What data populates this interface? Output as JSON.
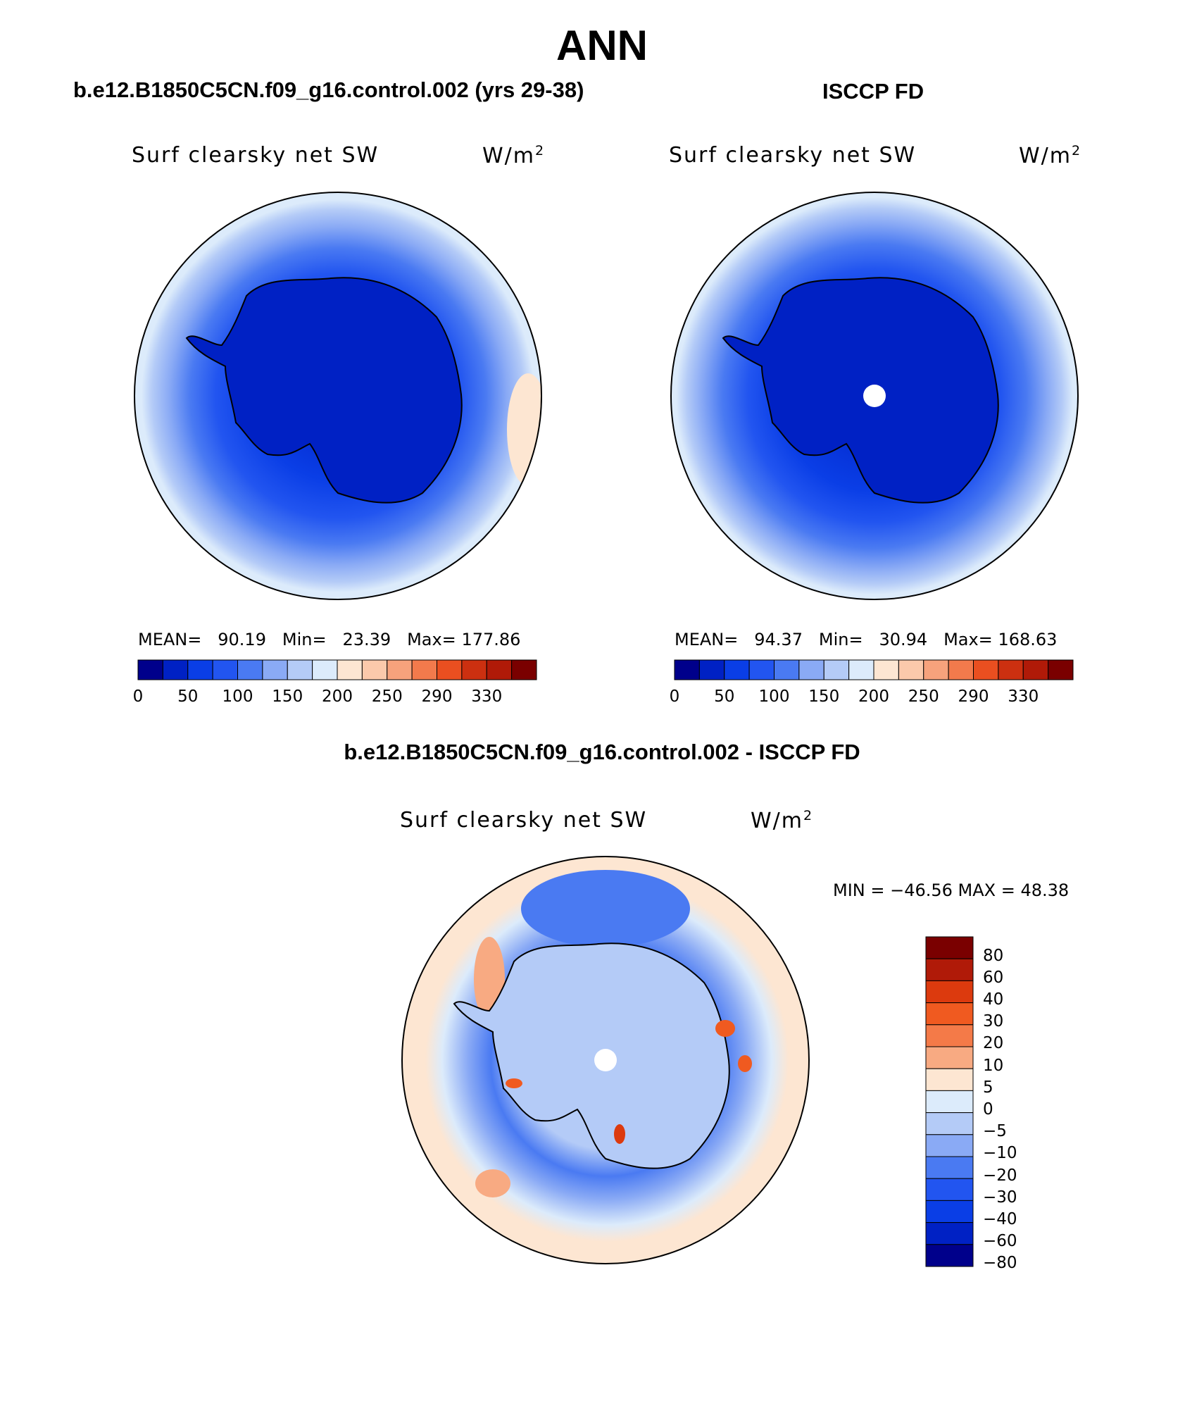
{
  "title": "ANN",
  "panels": [
    {
      "title": "b.e12.B1850C5CN.f09_g16.control.002 (yrs 29-38)",
      "variable": "Surf clearsky net SW",
      "units": "W/m",
      "units_sup": "2",
      "stats": {
        "mean_label": "MEAN=",
        "mean": "90.19",
        "min_label": "Min=",
        "min": "23.39",
        "max_label": "Max=",
        "max": "177.86"
      },
      "colorbar_ticks": [
        "0",
        "50",
        "100",
        "150",
        "200",
        "250",
        "290",
        "330"
      ]
    },
    {
      "title": "ISCCP FD",
      "variable": "Surf clearsky net SW",
      "units": "W/m",
      "units_sup": "2",
      "stats": {
        "mean_label": "MEAN=",
        "mean": "94.37",
        "min_label": "Min=",
        "min": "30.94",
        "max_label": "Max=",
        "max": "168.63"
      },
      "colorbar_ticks": [
        "0",
        "50",
        "100",
        "150",
        "200",
        "250",
        "290",
        "330"
      ]
    }
  ],
  "difference": {
    "title": "b.e12.B1850C5CN.f09_g16.control.002 - ISCCP FD",
    "variable": "Surf clearsky net SW",
    "units": "W/m",
    "units_sup": "2",
    "minmax": "MIN = −46.56 MAX =   48.38",
    "colorbar_ticks": [
      "80",
      "60",
      "40",
      "30",
      "20",
      "10",
      "5",
      "0",
      "−5",
      "−10",
      "−20",
      "−30",
      "−40",
      "−60",
      "−80"
    ]
  },
  "colors": {
    "abs_scale": [
      "#00008b",
      "#0021c4",
      "#0a3ee6",
      "#2255f0",
      "#4a7af2",
      "#8aaaf5",
      "#b4cbf7",
      "#dcebfb",
      "#fde6d2",
      "#fbc9ab",
      "#f7a27c",
      "#f27a4c",
      "#ea4f20",
      "#cc3010",
      "#b01a08",
      "#7a0000"
    ],
    "diff_scale": [
      "#7a0000",
      "#b01a08",
      "#dc3a0e",
      "#f05a20",
      "#f47a48",
      "#f8aa82",
      "#fde6d2",
      "#dcebfb",
      "#b4cbf7",
      "#8aaaf5",
      "#4a7af2",
      "#2255f0",
      "#0a3ee6",
      "#0021c4",
      "#00008b"
    ]
  }
}
